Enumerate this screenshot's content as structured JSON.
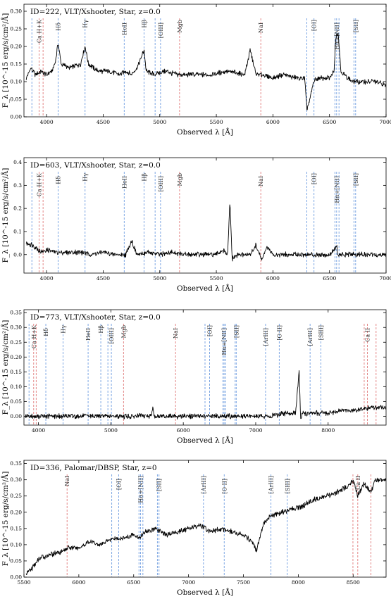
{
  "chart_data": [
    {
      "type": "line",
      "title": "ID=222, VLT/Xshooter, Star, z=0.0",
      "xlabel": "Observed λ [Å]",
      "ylabel": "F_λ [10^-15 erg/s/cm²/Å]",
      "xlim": [
        3800,
        7000
      ],
      "ylim": [
        0,
        0.32
      ],
      "xticks": [
        4000,
        4500,
        5000,
        5500,
        6000,
        6500,
        7000
      ],
      "yticks": [
        0.0,
        0.05,
        0.1,
        0.15,
        0.2,
        0.25,
        0.3
      ],
      "ytick_labels": [
        "0.00",
        "0.05",
        "0.10",
        "0.15",
        "0.20",
        "0.25",
        "0.30"
      ],
      "series": [
        {
          "x": [
            3820,
            3860,
            3900,
            3950,
            4000,
            4050,
            4080,
            4102,
            4130,
            4200,
            4300,
            4340,
            4370,
            4450,
            4550,
            4650,
            4700,
            4750,
            4800,
            4850,
            4862,
            4880,
            4950,
            5050,
            5150,
            5300,
            5450,
            5600,
            5750,
            5800,
            5850,
            5900,
            6000,
            6100,
            6200,
            6280,
            6300,
            6320,
            6360,
            6400,
            6500,
            6540,
            6555,
            6563,
            6580,
            6600,
            6700,
            6800,
            6900,
            7000
          ],
          "y": [
            0.11,
            0.14,
            0.12,
            0.13,
            0.12,
            0.13,
            0.16,
            0.21,
            0.15,
            0.14,
            0.15,
            0.2,
            0.15,
            0.13,
            0.13,
            0.12,
            0.13,
            0.12,
            0.14,
            0.18,
            0.19,
            0.13,
            0.12,
            0.13,
            0.12,
            0.12,
            0.12,
            0.13,
            0.12,
            0.19,
            0.12,
            0.12,
            0.11,
            0.12,
            0.11,
            0.11,
            0.02,
            0.04,
            0.1,
            0.11,
            0.11,
            0.13,
            0.22,
            0.24,
            0.23,
            0.13,
            0.1,
            0.1,
            0.1,
            0.09
          ]
        }
      ],
      "lines": [
        {
          "label": "",
          "x": 3870,
          "color": "#6f9de0"
        },
        {
          "label": "Ca H+K",
          "x": 3934,
          "color": "#e07a7a"
        },
        {
          "label": "",
          "x": 3969,
          "color": "#e07a7a"
        },
        {
          "label": "Hδ",
          "x": 4102,
          "color": "#6f9de0"
        },
        {
          "label": "Hγ",
          "x": 4340,
          "color": "#6f9de0"
        },
        {
          "label": "HeII",
          "x": 4686,
          "color": "#6f9de0"
        },
        {
          "label": "Hβ",
          "x": 4861,
          "color": "#6f9de0"
        },
        {
          "label": "",
          "x": 4959,
          "color": "#6f9de0"
        },
        {
          "label": "[OIII]",
          "x": 5007,
          "color": "#6f9de0"
        },
        {
          "label": "Mgb",
          "x": 5175,
          "color": "#e07a7a"
        },
        {
          "label": "NaI",
          "x": 5893,
          "color": "#e07a7a"
        },
        {
          "label": "",
          "x": 6300,
          "color": "#6f9de0"
        },
        {
          "label": "[OI]",
          "x": 6363,
          "color": "#6f9de0"
        },
        {
          "label": "",
          "x": 6548,
          "color": "#6f9de0"
        },
        {
          "label": "Hα+[NII]",
          "x": 6563,
          "color": "#6f9de0"
        },
        {
          "label": "",
          "x": 6584,
          "color": "#6f9de0"
        },
        {
          "label": "",
          "x": 6716,
          "color": "#6f9de0"
        },
        {
          "label": "[SII]",
          "x": 6731,
          "color": "#6f9de0"
        }
      ]
    },
    {
      "type": "line",
      "title": "ID=603, VLT/Xshooter, Star, z=0.0",
      "xlabel": "Observed λ [Å]",
      "ylabel": "F_λ [10^-15 erg/s/cm²/Å]",
      "xlim": [
        3800,
        7000
      ],
      "ylim": [
        -0.08,
        0.42
      ],
      "xticks": [
        4000,
        4500,
        5000,
        5500,
        6000,
        6500,
        7000
      ],
      "yticks": [
        0.0,
        0.1,
        0.2,
        0.3,
        0.4
      ],
      "ytick_labels": [
        "0.0",
        "0.1",
        "0.2",
        "0.3",
        "0.4"
      ],
      "series": [
        {
          "x": [
            3820,
            3880,
            3950,
            4000,
            4100,
            4200,
            4300,
            4400,
            4500,
            4600,
            4700,
            4750,
            4800,
            4900,
            5000,
            5100,
            5200,
            5300,
            5400,
            5500,
            5550,
            5600,
            5620,
            5640,
            5700,
            5800,
            5850,
            5900,
            5950,
            6000,
            6100,
            6200,
            6300,
            6400,
            6500,
            6560,
            6563,
            6570,
            6650,
            6800,
            6900,
            7000
          ],
          "y": [
            0.05,
            0.04,
            0.01,
            0.02,
            0.01,
            0.01,
            0.01,
            0.0,
            0.01,
            0.0,
            0.0,
            0.06,
            0.0,
            0.01,
            0.0,
            0.01,
            0.0,
            0.0,
            0.0,
            0.0,
            0.02,
            0.0,
            0.23,
            -0.02,
            0.0,
            0.0,
            0.04,
            -0.02,
            0.03,
            0.0,
            0.0,
            0.0,
            0.0,
            0.0,
            0.0,
            0.03,
            0.05,
            0.0,
            0.0,
            0.0,
            0.0,
            0.0
          ]
        }
      ],
      "lines": [
        {
          "label": "",
          "x": 3870,
          "color": "#6f9de0"
        },
        {
          "label": "Ca H+K",
          "x": 3934,
          "color": "#e07a7a"
        },
        {
          "label": "",
          "x": 3969,
          "color": "#e07a7a"
        },
        {
          "label": "Hδ",
          "x": 4102,
          "color": "#6f9de0"
        },
        {
          "label": "Hγ",
          "x": 4340,
          "color": "#6f9de0"
        },
        {
          "label": "HeII",
          "x": 4686,
          "color": "#6f9de0"
        },
        {
          "label": "Hβ",
          "x": 4861,
          "color": "#6f9de0"
        },
        {
          "label": "",
          "x": 4959,
          "color": "#6f9de0"
        },
        {
          "label": "[OIII]",
          "x": 5007,
          "color": "#6f9de0"
        },
        {
          "label": "Mgb",
          "x": 5175,
          "color": "#e07a7a"
        },
        {
          "label": "NaI",
          "x": 5893,
          "color": "#e07a7a"
        },
        {
          "label": "",
          "x": 6300,
          "color": "#6f9de0"
        },
        {
          "label": "[OI]",
          "x": 6363,
          "color": "#6f9de0"
        },
        {
          "label": "",
          "x": 6548,
          "color": "#6f9de0"
        },
        {
          "label": "Hα+[NII]",
          "x": 6563,
          "color": "#6f9de0"
        },
        {
          "label": "",
          "x": 6584,
          "color": "#6f9de0"
        },
        {
          "label": "",
          "x": 6716,
          "color": "#6f9de0"
        },
        {
          "label": "[SII]",
          "x": 6731,
          "color": "#6f9de0"
        }
      ]
    },
    {
      "type": "line",
      "title": "ID=773, VLT/Xshooter, Star, z=0.0",
      "xlabel": "Observed λ [Å]",
      "ylabel": "F_λ [10^-15 erg/s/cm²/Å]",
      "xlim": [
        3800,
        8800
      ],
      "ylim": [
        -0.03,
        0.36
      ],
      "xticks": [
        4000,
        5000,
        6000,
        7000,
        8000
      ],
      "yticks": [
        0.0,
        0.05,
        0.1,
        0.15,
        0.2,
        0.25,
        0.3,
        0.35
      ],
      "ytick_labels": [
        "0.00",
        "0.05",
        "0.10",
        "0.15",
        "0.20",
        "0.25",
        "0.30",
        "0.35"
      ],
      "series": [
        {
          "x": [
            3820,
            4000,
            4200,
            4500,
            4800,
            5000,
            5200,
            5400,
            5550,
            5580,
            5600,
            5800,
            6000,
            6200,
            6400,
            6600,
            6800,
            7000,
            7200,
            7400,
            7550,
            7600,
            7620,
            7640,
            7700,
            7800,
            8000,
            8200,
            8400,
            8600,
            8800
          ],
          "y": [
            0.0,
            0.0,
            0.0,
            0.0,
            0.0,
            0.0,
            0.0,
            0.0,
            0.0,
            0.03,
            0.0,
            0.0,
            0.0,
            0.0,
            0.0,
            0.0,
            0.0,
            0.0,
            0.0,
            0.01,
            0.01,
            0.15,
            -0.01,
            0.01,
            0.01,
            0.01,
            0.01,
            0.02,
            0.02,
            0.03,
            0.03
          ]
        }
      ],
      "lines": [
        {
          "label": "",
          "x": 3870,
          "color": "#6f9de0"
        },
        {
          "label": "Ca H+K",
          "x": 3934,
          "color": "#e07a7a"
        },
        {
          "label": "",
          "x": 3969,
          "color": "#e07a7a"
        },
        {
          "label": "Hδ",
          "x": 4102,
          "color": "#6f9de0"
        },
        {
          "label": "Hγ",
          "x": 4340,
          "color": "#6f9de0"
        },
        {
          "label": "HeII",
          "x": 4686,
          "color": "#6f9de0"
        },
        {
          "label": "Hβ",
          "x": 4861,
          "color": "#6f9de0"
        },
        {
          "label": "",
          "x": 4959,
          "color": "#6f9de0"
        },
        {
          "label": "[OIII]",
          "x": 5007,
          "color": "#6f9de0"
        },
        {
          "label": "Mgb",
          "x": 5175,
          "color": "#e07a7a"
        },
        {
          "label": "NaI",
          "x": 5893,
          "color": "#e07a7a"
        },
        {
          "label": "",
          "x": 6300,
          "color": "#6f9de0"
        },
        {
          "label": "[OI]",
          "x": 6363,
          "color": "#6f9de0"
        },
        {
          "label": "",
          "x": 6548,
          "color": "#6f9de0"
        },
        {
          "label": "Hα+[NII]",
          "x": 6563,
          "color": "#6f9de0"
        },
        {
          "label": "",
          "x": 6584,
          "color": "#6f9de0"
        },
        {
          "label": "",
          "x": 6716,
          "color": "#6f9de0"
        },
        {
          "label": "[SII]",
          "x": 6731,
          "color": "#6f9de0"
        },
        {
          "label": "[ArIII]",
          "x": 7136,
          "color": "#6f9de0"
        },
        {
          "label": "[O II]",
          "x": 7325,
          "color": "#6f9de0"
        },
        {
          "label": "[ArIII]",
          "x": 7751,
          "color": "#6f9de0"
        },
        {
          "label": "[SIII]",
          "x": 7900,
          "color": "#6f9de0"
        },
        {
          "label": "",
          "x": 8498,
          "color": "#e07a7a"
        },
        {
          "label": "Ca II",
          "x": 8542,
          "color": "#e07a7a"
        },
        {
          "label": "",
          "x": 8662,
          "color": "#e07a7a"
        }
      ]
    },
    {
      "type": "line",
      "title": "ID=336, Palomar/DBSP, Star, z=0",
      "xlabel": "Observed λ [Å]",
      "ylabel": "F_λ [10^-15 erg/s/cm²/Å]",
      "xlim": [
        5500,
        8800
      ],
      "ylim": [
        0,
        0.36
      ],
      "xticks": [
        5500,
        6000,
        6500,
        7000,
        7500,
        8000,
        8500
      ],
      "yticks": [
        0.0,
        0.05,
        0.1,
        0.15,
        0.2,
        0.25,
        0.3,
        0.35
      ],
      "ytick_labels": [
        "0.00",
        "0.05",
        "0.10",
        "0.15",
        "0.20",
        "0.25",
        "0.30",
        "0.35"
      ],
      "series": [
        {
          "x": [
            5520,
            5580,
            5650,
            5750,
            5850,
            5900,
            6000,
            6100,
            6200,
            6300,
            6400,
            6500,
            6560,
            6600,
            6700,
            6800,
            6900,
            7000,
            7100,
            7200,
            7300,
            7400,
            7500,
            7580,
            7620,
            7680,
            7750,
            7850,
            7950,
            8050,
            8150,
            8250,
            8350,
            8450,
            8500,
            8540,
            8600,
            8660,
            8700,
            8800
          ],
          "y": [
            0.01,
            0.03,
            0.06,
            0.07,
            0.08,
            0.09,
            0.09,
            0.11,
            0.1,
            0.12,
            0.12,
            0.13,
            0.12,
            0.14,
            0.15,
            0.13,
            0.14,
            0.15,
            0.16,
            0.14,
            0.15,
            0.14,
            0.13,
            0.11,
            0.08,
            0.16,
            0.19,
            0.2,
            0.21,
            0.22,
            0.24,
            0.25,
            0.26,
            0.28,
            0.3,
            0.25,
            0.29,
            0.26,
            0.3,
            0.3
          ]
        }
      ],
      "lines": [
        {
          "label": "NaI",
          "x": 5893,
          "color": "#e07a7a"
        },
        {
          "label": "",
          "x": 6300,
          "color": "#6f9de0"
        },
        {
          "label": "[OI]",
          "x": 6363,
          "color": "#6f9de0"
        },
        {
          "label": "",
          "x": 6548,
          "color": "#6f9de0"
        },
        {
          "label": "Hα+[NII]",
          "x": 6563,
          "color": "#6f9de0"
        },
        {
          "label": "",
          "x": 6584,
          "color": "#6f9de0"
        },
        {
          "label": "",
          "x": 6716,
          "color": "#6f9de0"
        },
        {
          "label": "[SII]",
          "x": 6731,
          "color": "#6f9de0"
        },
        {
          "label": "[ArIII]",
          "x": 7136,
          "color": "#6f9de0"
        },
        {
          "label": "[O II]",
          "x": 7325,
          "color": "#6f9de0"
        },
        {
          "label": "[ArIII]",
          "x": 7751,
          "color": "#6f9de0"
        },
        {
          "label": "[SIII]",
          "x": 7900,
          "color": "#6f9de0"
        },
        {
          "label": "",
          "x": 8498,
          "color": "#e07a7a"
        },
        {
          "label": "Ca II",
          "x": 8542,
          "color": "#e07a7a"
        },
        {
          "label": "",
          "x": 8662,
          "color": "#e07a7a"
        }
      ]
    }
  ]
}
